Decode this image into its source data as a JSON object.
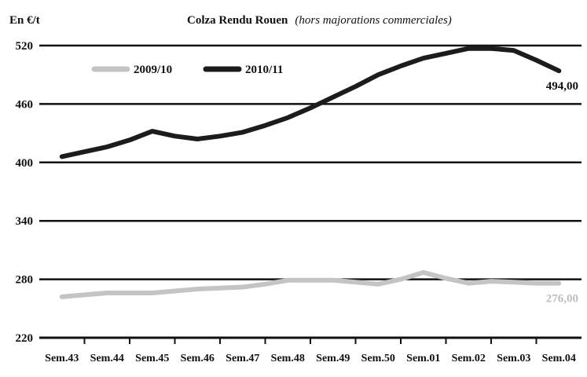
{
  "chart_data": {
    "type": "line",
    "title": "Colza Rendu Rouen",
    "subtitle": "(hors majorations commerciales)",
    "ylabel": "En €/t",
    "xlabel": "",
    "ylim": [
      220,
      520
    ],
    "yticks": [
      220,
      280,
      340,
      400,
      460,
      520
    ],
    "grid": true,
    "legend_position": "top-left",
    "categories": [
      "Sem.43",
      "Sem.44",
      "Sem.45",
      "Sem.46",
      "Sem.47",
      "Sem.48",
      "Sem.49",
      "Sem.50",
      "Sem.01",
      "Sem.02",
      "Sem.03",
      "Sem.04"
    ],
    "x": [
      1,
      1.5,
      2,
      2.5,
      3,
      3.5,
      4,
      4.5,
      5,
      5.5,
      6,
      6.5,
      7,
      7.5,
      8,
      8.5,
      9,
      9.5,
      10,
      10.5,
      11,
      11.5,
      12
    ],
    "series": [
      {
        "name": "2009/10",
        "color": "#c4c4c4",
        "values": [
          262,
          264,
          266,
          266,
          266,
          268,
          270,
          271,
          272,
          275,
          279,
          279,
          279,
          277,
          275,
          280,
          287,
          281,
          276,
          278,
          277,
          276,
          276
        ],
        "end_label": "276,00"
      },
      {
        "name": "2010/11",
        "color": "#1c1c1c",
        "values": [
          406,
          411,
          416,
          423,
          432,
          427,
          424,
          427,
          431,
          438,
          446,
          456,
          467,
          478,
          490,
          499,
          507,
          512,
          517,
          517,
          515,
          505,
          494
        ],
        "end_label": "494,00"
      }
    ]
  }
}
